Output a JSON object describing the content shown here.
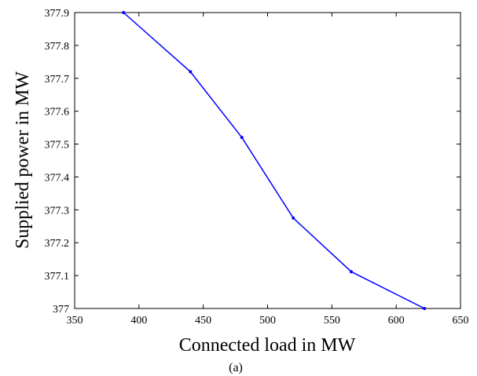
{
  "chart_data": {
    "type": "line",
    "title": "",
    "xlabel": "Connected load in MW",
    "ylabel": "Supplied power in MW",
    "caption": "(a)",
    "xlim": [
      350,
      650
    ],
    "ylim": [
      377,
      377.9
    ],
    "x_ticks": [
      "350",
      "400",
      "450",
      "500",
      "550",
      "600",
      "650"
    ],
    "y_ticks": [
      "377",
      "377.1",
      "377.2",
      "377.3",
      "377.4",
      "377.5",
      "377.6",
      "377.7",
      "377.8",
      "377.9"
    ],
    "grid": false,
    "legend": "none",
    "series": [
      {
        "color": "#0000ff",
        "x": [
          388,
          440,
          480,
          520,
          565,
          622
        ],
        "y": [
          377.9,
          377.72,
          377.52,
          377.275,
          377.112,
          377.0
        ]
      }
    ]
  }
}
